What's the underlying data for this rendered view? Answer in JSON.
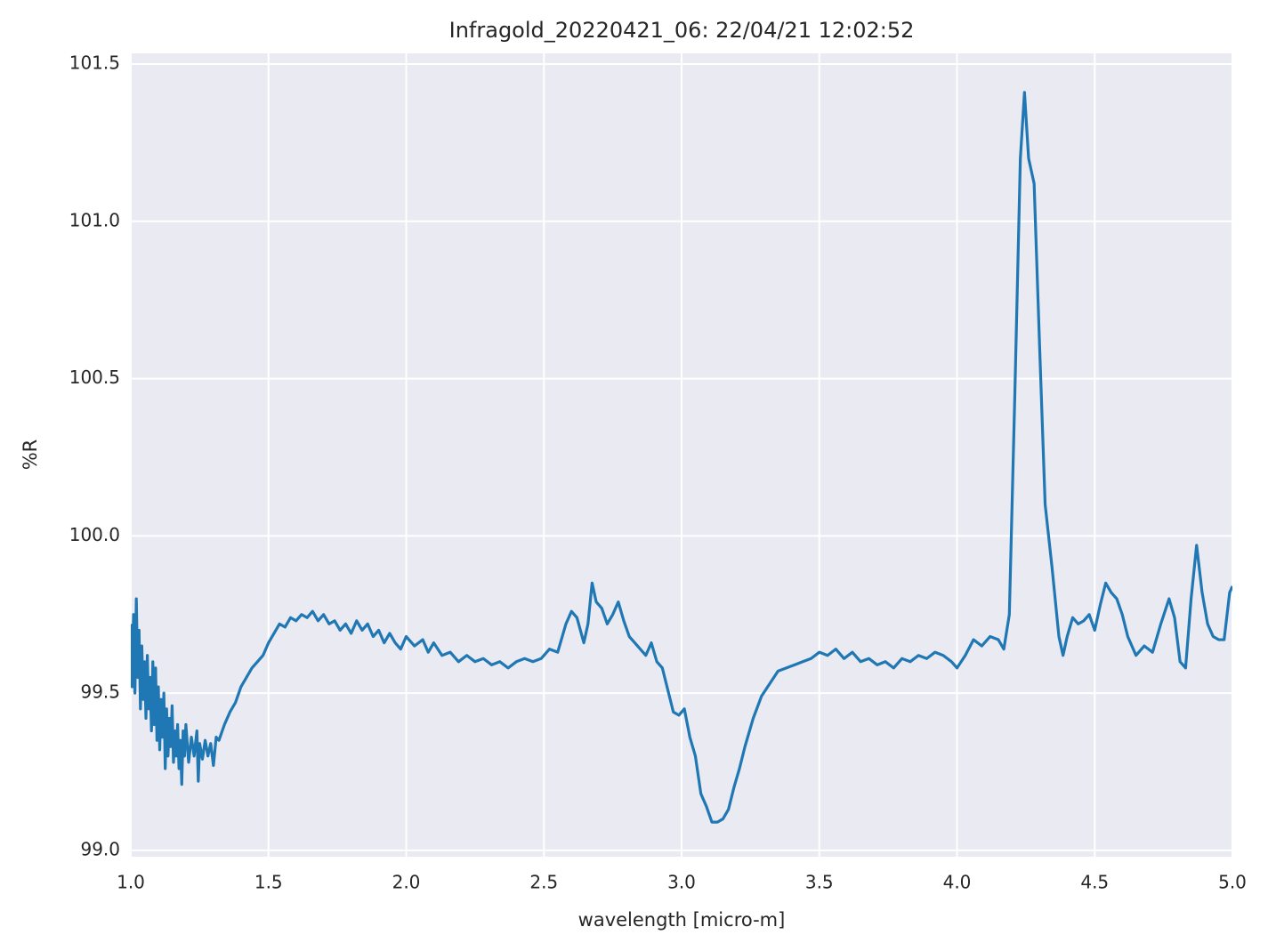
{
  "chart_data": {
    "type": "line",
    "title": "Infragold_20220421_06:  22/04/21 12:02:52",
    "xlabel": "wavelength [micro-m]",
    "ylabel": "%R",
    "color": "#1f77b4",
    "grid": true,
    "xlim": [
      1,
      5
    ],
    "ylim": [
      98.98,
      101.534
    ],
    "xticks": [
      {
        "value": 1,
        "label": "1.0"
      },
      1.5,
      {
        "value": 2,
        "label": "2.0"
      },
      2.5,
      {
        "value": 3,
        "label": "3.0"
      },
      3.5,
      {
        "value": 4,
        "label": "4.0"
      },
      4.5,
      {
        "value": 5,
        "label": "5.0"
      }
    ],
    "yticks": [
      {
        "value": 99,
        "label": "99.0"
      },
      99.5,
      {
        "value": 100,
        "label": "100.0"
      },
      100.5,
      {
        "value": 101,
        "label": "101.0"
      },
      101.5
    ],
    "x": [
      1.0,
      1.005,
      1.01,
      1.015,
      1.02,
      1.025,
      1.03,
      1.035,
      1.04,
      1.045,
      1.05,
      1.055,
      1.06,
      1.065,
      1.07,
      1.075,
      1.08,
      1.085,
      1.09,
      1.095,
      1.1,
      1.105,
      1.11,
      1.115,
      1.12,
      1.125,
      1.13,
      1.135,
      1.14,
      1.145,
      1.15,
      1.155,
      1.16,
      1.165,
      1.17,
      1.175,
      1.18,
      1.185,
      1.19,
      1.195,
      1.2,
      1.21,
      1.22,
      1.23,
      1.24,
      1.245,
      1.25,
      1.26,
      1.27,
      1.28,
      1.29,
      1.3,
      1.31,
      1.32,
      1.34,
      1.36,
      1.38,
      1.4,
      1.42,
      1.44,
      1.46,
      1.48,
      1.5,
      1.52,
      1.54,
      1.56,
      1.58,
      1.6,
      1.62,
      1.64,
      1.66,
      1.68,
      1.7,
      1.72,
      1.74,
      1.76,
      1.78,
      1.8,
      1.82,
      1.84,
      1.86,
      1.88,
      1.9,
      1.92,
      1.94,
      1.96,
      1.98,
      2.0,
      2.03,
      2.06,
      2.08,
      2.1,
      2.13,
      2.16,
      2.19,
      2.22,
      2.25,
      2.28,
      2.31,
      2.34,
      2.37,
      2.4,
      2.43,
      2.46,
      2.49,
      2.52,
      2.55,
      2.58,
      2.6,
      2.62,
      2.645,
      2.66,
      2.675,
      2.69,
      2.71,
      2.73,
      2.75,
      2.77,
      2.79,
      2.81,
      2.83,
      2.85,
      2.87,
      2.89,
      2.91,
      2.93,
      2.95,
      2.97,
      2.99,
      3.01,
      3.03,
      3.05,
      3.07,
      3.09,
      3.11,
      3.13,
      3.15,
      3.17,
      3.19,
      3.21,
      3.23,
      3.26,
      3.29,
      3.32,
      3.35,
      3.38,
      3.41,
      3.44,
      3.47,
      3.5,
      3.53,
      3.56,
      3.59,
      3.62,
      3.65,
      3.68,
      3.71,
      3.74,
      3.77,
      3.8,
      3.83,
      3.86,
      3.89,
      3.92,
      3.95,
      3.98,
      4.0,
      4.03,
      4.06,
      4.09,
      4.12,
      4.15,
      4.17,
      4.19,
      4.21,
      4.23,
      4.245,
      4.26,
      4.28,
      4.3,
      4.32,
      4.345,
      4.37,
      4.385,
      4.4,
      4.42,
      4.44,
      4.46,
      4.48,
      4.5,
      4.52,
      4.54,
      4.56,
      4.58,
      4.6,
      4.62,
      4.65,
      4.68,
      4.71,
      4.74,
      4.77,
      4.79,
      4.81,
      4.83,
      4.85,
      4.87,
      4.89,
      4.91,
      4.93,
      4.95,
      4.97,
      4.99,
      5.0
    ],
    "values": [
      99.72,
      99.52,
      99.75,
      99.5,
      99.8,
      99.55,
      99.7,
      99.45,
      99.65,
      99.48,
      99.6,
      99.42,
      99.62,
      99.45,
      99.55,
      99.38,
      99.6,
      99.4,
      99.58,
      99.35,
      99.52,
      99.32,
      99.48,
      99.36,
      99.5,
      99.26,
      99.45,
      99.3,
      99.42,
      99.33,
      99.46,
      99.28,
      99.38,
      99.3,
      99.4,
      99.26,
      99.35,
      99.21,
      99.38,
      99.3,
      99.4,
      99.28,
      99.36,
      99.3,
      99.38,
      99.22,
      99.34,
      99.29,
      99.35,
      99.3,
      99.34,
      99.27,
      99.36,
      99.35,
      99.4,
      99.44,
      99.47,
      99.52,
      99.55,
      99.58,
      99.6,
      99.62,
      99.66,
      99.69,
      99.72,
      99.71,
      99.74,
      99.73,
      99.75,
      99.74,
      99.76,
      99.73,
      99.75,
      99.72,
      99.73,
      99.7,
      99.72,
      99.69,
      99.73,
      99.7,
      99.72,
      99.68,
      99.7,
      99.66,
      99.69,
      99.66,
      99.64,
      99.68,
      99.65,
      99.67,
      99.63,
      99.66,
      99.62,
      99.63,
      99.6,
      99.62,
      99.6,
      99.61,
      99.59,
      99.6,
      99.58,
      99.6,
      99.61,
      99.6,
      99.61,
      99.64,
      99.63,
      99.72,
      99.76,
      99.74,
      99.66,
      99.72,
      99.85,
      99.79,
      99.77,
      99.72,
      99.75,
      99.79,
      99.73,
      99.68,
      99.66,
      99.64,
      99.62,
      99.66,
      99.6,
      99.58,
      99.51,
      99.44,
      99.43,
      99.45,
      99.36,
      99.3,
      99.18,
      99.14,
      99.09,
      99.09,
      99.1,
      99.13,
      99.2,
      99.26,
      99.33,
      99.42,
      99.49,
      99.53,
      99.57,
      99.58,
      99.59,
      99.6,
      99.61,
      99.63,
      99.62,
      99.64,
      99.61,
      99.63,
      99.6,
      99.61,
      99.59,
      99.6,
      99.58,
      99.61,
      99.6,
      99.62,
      99.61,
      99.63,
      99.62,
      99.6,
      99.58,
      99.62,
      99.67,
      99.65,
      99.68,
      99.67,
      99.64,
      99.75,
      100.45,
      101.2,
      101.41,
      101.2,
      101.12,
      100.6,
      100.1,
      99.9,
      99.68,
      99.62,
      99.68,
      99.74,
      99.72,
      99.73,
      99.75,
      99.7,
      99.78,
      99.85,
      99.82,
      99.8,
      99.75,
      99.68,
      99.62,
      99.65,
      99.63,
      99.72,
      99.8,
      99.74,
      99.6,
      99.58,
      99.8,
      99.97,
      99.82,
      99.72,
      99.68,
      99.67,
      99.67,
      99.82,
      99.84
    ]
  }
}
